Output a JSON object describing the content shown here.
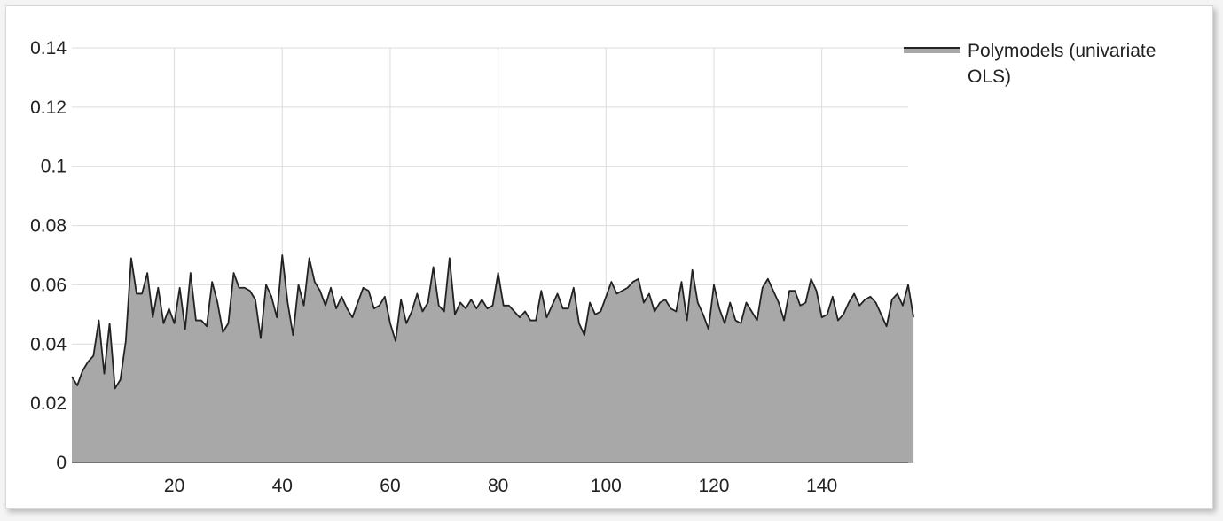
{
  "chart_data": {
    "type": "area",
    "title": "",
    "xlabel": "",
    "ylabel": "",
    "xlim": [
      1,
      156
    ],
    "ylim": [
      0,
      0.14
    ],
    "grid": true,
    "legend_position": "right",
    "x_ticks": [
      "20",
      "40",
      "60",
      "80",
      "100",
      "120",
      "140"
    ],
    "y_ticks": [
      "0",
      "0.02",
      "0.04",
      "0.06",
      "0.08",
      "0.1",
      "0.12",
      "0.14"
    ],
    "series": [
      {
        "name": "Polymodels (univariate OLS)",
        "legend_lines": [
          "Polymodels (univariate",
          "OLS)"
        ],
        "fill_color": "#a8a8a8",
        "line_color": "#222222",
        "x_start": 1,
        "values": [
          0.029,
          0.026,
          0.031,
          0.034,
          0.036,
          0.048,
          0.03,
          0.047,
          0.025,
          0.028,
          0.041,
          0.069,
          0.057,
          0.057,
          0.064,
          0.049,
          0.059,
          0.047,
          0.052,
          0.047,
          0.059,
          0.045,
          0.064,
          0.048,
          0.048,
          0.046,
          0.061,
          0.054,
          0.044,
          0.047,
          0.064,
          0.059,
          0.059,
          0.058,
          0.055,
          0.042,
          0.06,
          0.056,
          0.049,
          0.07,
          0.054,
          0.043,
          0.06,
          0.053,
          0.069,
          0.061,
          0.058,
          0.053,
          0.059,
          0.052,
          0.056,
          0.052,
          0.049,
          0.054,
          0.059,
          0.058,
          0.052,
          0.053,
          0.056,
          0.047,
          0.041,
          0.055,
          0.047,
          0.051,
          0.057,
          0.051,
          0.054,
          0.066,
          0.053,
          0.051,
          0.069,
          0.05,
          0.054,
          0.052,
          0.055,
          0.052,
          0.055,
          0.052,
          0.053,
          0.064,
          0.053,
          0.053,
          0.051,
          0.049,
          0.051,
          0.048,
          0.048,
          0.058,
          0.049,
          0.053,
          0.057,
          0.052,
          0.052,
          0.059,
          0.047,
          0.043,
          0.054,
          0.05,
          0.051,
          0.056,
          0.061,
          0.057,
          0.058,
          0.059,
          0.061,
          0.062,
          0.054,
          0.057,
          0.051,
          0.054,
          0.055,
          0.052,
          0.051,
          0.061,
          0.048,
          0.065,
          0.054,
          0.05,
          0.045,
          0.06,
          0.052,
          0.047,
          0.054,
          0.048,
          0.047,
          0.054,
          0.051,
          0.048,
          0.059,
          0.062,
          0.058,
          0.054,
          0.048,
          0.058,
          0.058,
          0.053,
          0.054,
          0.062,
          0.058,
          0.049,
          0.05,
          0.056,
          0.048,
          0.05,
          0.054,
          0.057,
          0.053,
          0.055,
          0.056,
          0.054,
          0.05,
          0.046,
          0.055,
          0.057,
          0.053,
          0.06,
          0.049
        ]
      }
    ]
  }
}
